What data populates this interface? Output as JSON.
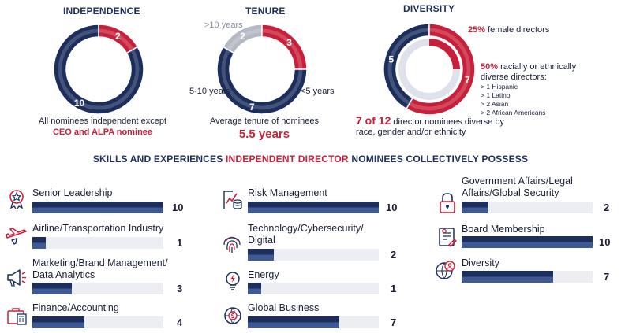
{
  "colors": {
    "navy": "#1c2e5c",
    "navy_light": "#3d5a94",
    "red": "#c8203a",
    "gray": "#b5b9c4",
    "bar_bg": "#eceef3"
  },
  "independence": {
    "title": "INDEPENDENCE",
    "caption_line1": "All nominees independent except",
    "caption_highlight": "CEO and ALPA nominee"
  },
  "tenure": {
    "title": "TENURE",
    "caption_line1": "Average tenure of nominees",
    "average": "5.5 years",
    "legend": {
      "gt10": ">10 years",
      "mid": "5-10 years",
      "lt5": "<5 years"
    }
  },
  "diversity": {
    "title": "DIVERSITY",
    "female_pct": "25%",
    "female_text": " female directors",
    "racial_pct": "50%",
    "racial_text": " racially or ethnically diverse directors:",
    "breakdown": [
      "> 1 Hispanic",
      "> 1 Latino",
      "> 2 Asian",
      "> 2 African Americans"
    ],
    "summary_count": "7 of 12",
    "summary_text": " director nominees diverse by race, gender and/or ethnicity"
  },
  "skills_header": {
    "part1": "SKILLS AND EXPERIENCES ",
    "highlight": "INDEPENDENT DIRECTOR",
    "part2": " NOMINEES COLLECTIVELY POSSESS"
  },
  "chart_data": [
    {
      "type": "pie",
      "title": "INDEPENDENCE",
      "labels": [
        "Not independent",
        "Independent"
      ],
      "values": [
        2,
        10
      ],
      "colors": [
        "#c8203a",
        "#1c2e5c"
      ]
    },
    {
      "type": "pie",
      "title": "TENURE",
      "labels": [
        ">10 years",
        "5-10 years",
        "<5 years"
      ],
      "values": [
        2,
        3,
        7
      ],
      "colors": [
        "#b5b9c4",
        "#c8203a",
        "#1c2e5c"
      ]
    },
    {
      "type": "pie",
      "title": "DIVERSITY",
      "labels": [
        "Not diverse",
        "Diverse"
      ],
      "values": [
        5,
        7
      ],
      "colors": [
        "#1c2e5c",
        "#c8203a"
      ],
      "inner_ring": {
        "label": "Female",
        "value": 3,
        "of": 12
      }
    },
    {
      "type": "bar",
      "title": "SKILLS AND EXPERIENCES INDEPENDENT DIRECTOR NOMINEES COLLECTIVELY POSSESS",
      "max": 10,
      "categories": [
        "Senior Leadership",
        "Airline/Transportation Industry",
        "Marketing/Brand Management/ Data Analytics",
        "Finance/Accounting",
        "Risk Management",
        "Technology/Cybersecurity/ Digital",
        "Energy",
        "Global Business",
        "Government Affairs/Legal Affairs/Global Security",
        "Board Membership",
        "Diversity"
      ],
      "values": [
        10,
        1,
        3,
        4,
        10,
        2,
        1,
        7,
        2,
        10,
        7
      ]
    }
  ]
}
